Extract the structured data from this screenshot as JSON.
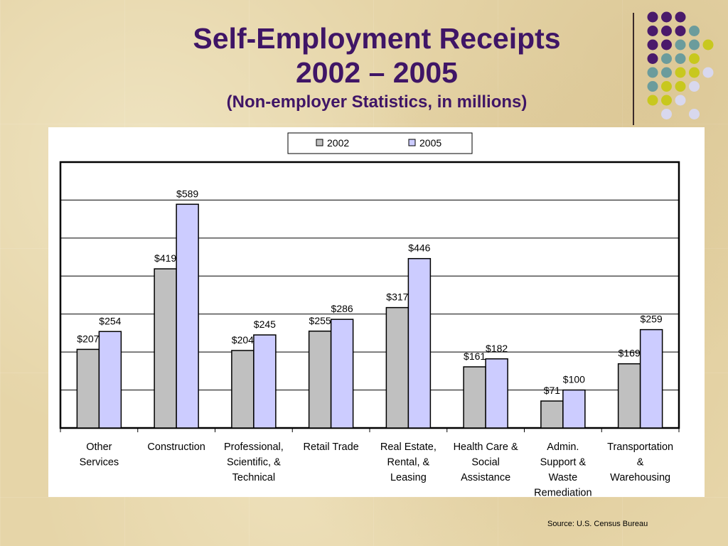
{
  "slide": {
    "title_line1": "Self-Employment Receipts",
    "title_line2": "2002 – 2005",
    "subtitle": "(Non-employer Statistics, in millions)",
    "source": "Source: U.S. Census Bureau"
  },
  "colors": {
    "title": "#3f1566",
    "series_2002": "#c0c0c0",
    "series_2005": "#ccccff",
    "dot_purple": "#4a1a6b",
    "dot_teal": "#6b9c9c",
    "dot_olive": "#c8c81e",
    "dot_lavender": "#d8d8ee"
  },
  "decor": {
    "dot_grid": [
      [
        "dot_purple",
        "dot_purple",
        "dot_purple",
        "",
        "",
        ""
      ],
      [
        "dot_purple",
        "dot_purple",
        "dot_purple",
        "dot_teal",
        "",
        ""
      ],
      [
        "dot_purple",
        "dot_purple",
        "dot_teal",
        "dot_teal",
        "dot_olive",
        ""
      ],
      [
        "dot_purple",
        "dot_teal",
        "dot_teal",
        "dot_olive",
        "",
        ""
      ],
      [
        "dot_teal",
        "dot_teal",
        "dot_olive",
        "dot_olive",
        "dot_lavender",
        ""
      ],
      [
        "dot_teal",
        "dot_olive",
        "dot_olive",
        "dot_lavender",
        "",
        ""
      ],
      [
        "dot_olive",
        "dot_olive",
        "dot_lavender",
        "",
        "",
        ""
      ],
      [
        "",
        "dot_lavender",
        "",
        "dot_lavender",
        "",
        ""
      ]
    ]
  },
  "chart_data": {
    "type": "bar",
    "categories": [
      [
        "Other",
        "Services"
      ],
      [
        "Construction"
      ],
      [
        "Professional,",
        "Scientific, &",
        "Technical"
      ],
      [
        "Retail Trade"
      ],
      [
        "Real Estate,",
        "Rental, &",
        "Leasing"
      ],
      [
        "Health Care &",
        "Social",
        "Assistance"
      ],
      [
        "Admin.",
        "Support &",
        "Waste",
        "Remediation"
      ],
      [
        "Transportation",
        "&",
        "Warehousing"
      ]
    ],
    "series": [
      {
        "name": "2002",
        "values": [
          207,
          419,
          204,
          255,
          317,
          161,
          71,
          169
        ],
        "labels": [
          "$207",
          "$419",
          "$204",
          "$255",
          "$317",
          "$161",
          "$71",
          "$169"
        ]
      },
      {
        "name": "2005",
        "values": [
          254,
          589,
          245,
          286,
          446,
          182,
          100,
          259
        ],
        "labels": [
          "$254",
          "$589",
          "$245",
          "$286",
          "$446",
          "$182",
          "$100",
          "$259"
        ]
      }
    ],
    "ylim": [
      0,
      700
    ],
    "y_grid_step": 100,
    "grid": true,
    "legend_position": "top-center",
    "axis_labels_shown": false
  }
}
